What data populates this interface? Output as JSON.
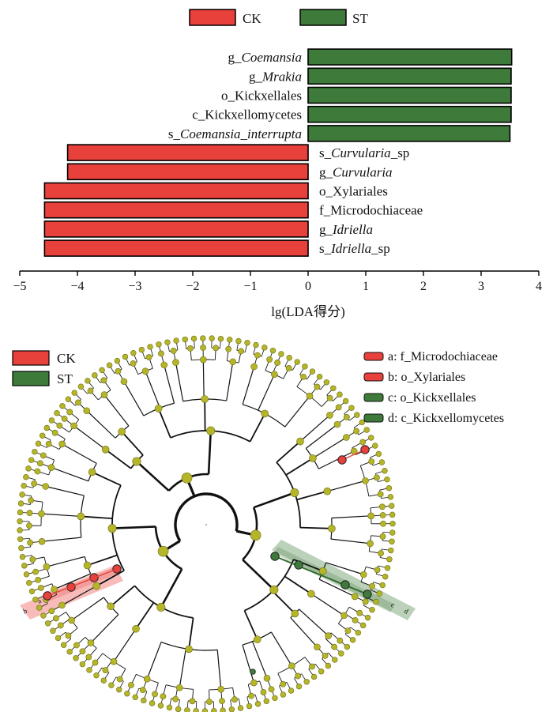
{
  "chart_data": [
    {
      "type": "bar",
      "orientation": "horizontal",
      "xlabel": "lg(LDA得分)",
      "xlim": [
        -5,
        4
      ],
      "xticks": [
        -5,
        -4,
        -3,
        -2,
        -1,
        0,
        1,
        2,
        3,
        4
      ],
      "legend": [
        {
          "label": "CK",
          "color": "#e8403a"
        },
        {
          "label": "ST",
          "color": "#3e7a3a"
        }
      ],
      "legend_position": "top-center",
      "bars": [
        {
          "label": "g_Coemansia",
          "pre": "g_",
          "name": "Coemansia",
          "italic": true,
          "suffix": "",
          "group": "ST",
          "value": 3.53
        },
        {
          "label": "g_Mrakia",
          "pre": "g_",
          "name": "Mrakia",
          "italic": true,
          "suffix": "",
          "group": "ST",
          "value": 3.52
        },
        {
          "label": "o_Kickxellales",
          "pre": "o_",
          "name": "Kickxellales",
          "italic": false,
          "suffix": "",
          "group": "ST",
          "value": 3.52
        },
        {
          "label": "c_Kickxellomycetes",
          "pre": "c_",
          "name": "Kickxellomycetes",
          "italic": false,
          "suffix": "",
          "group": "ST",
          "value": 3.52
        },
        {
          "label": "s_Coemansia_interrupta",
          "pre": "s_",
          "name": "Coemansia_interrupta",
          "italic": true,
          "suffix": "",
          "group": "ST",
          "value": 3.5
        },
        {
          "label": "s_Curvularia_sp",
          "pre": "s_",
          "name": "Curvularia",
          "italic": true,
          "suffix": "_sp",
          "group": "CK",
          "value": -4.17
        },
        {
          "label": "g_Curvularia",
          "pre": "g_",
          "name": "Curvularia",
          "italic": true,
          "suffix": "",
          "group": "CK",
          "value": -4.17
        },
        {
          "label": "o_Xylariales",
          "pre": "o_",
          "name": "Xylariales",
          "italic": false,
          "suffix": "",
          "group": "CK",
          "value": -4.57
        },
        {
          "label": "f_Microdochiaceae",
          "pre": "f_",
          "name": "Microdochiaceae",
          "italic": false,
          "suffix": "",
          "group": "CK",
          "value": -4.57
        },
        {
          "label": "g_Idriella",
          "pre": "g_",
          "name": "Idriella",
          "italic": true,
          "suffix": "",
          "group": "CK",
          "value": -4.57
        },
        {
          "label": "s_Idriella_sp",
          "pre": "s_",
          "name": "Idriella",
          "italic": true,
          "suffix": "_sp",
          "group": "CK",
          "value": -4.57
        }
      ]
    },
    {
      "type": "cladogram",
      "legend_groups": [
        {
          "label": "CK",
          "color": "#e8403a"
        },
        {
          "label": "ST",
          "color": "#3e7a3a"
        }
      ],
      "legend_taxa": [
        {
          "letter": "a",
          "text": "a: f_Microdochiaceae",
          "group": "CK"
        },
        {
          "letter": "b",
          "text": "b: o_Xylariales",
          "group": "CK"
        },
        {
          "letter": "c",
          "text": "c: o_Kickxellales",
          "group": "ST"
        },
        {
          "letter": "d",
          "text": "d: c_Kickxellomycetes",
          "group": "ST"
        }
      ],
      "highlight_labels": [
        "b",
        "a",
        "c",
        "d"
      ],
      "node_color": "#b5b52a",
      "levels": 6
    }
  ]
}
